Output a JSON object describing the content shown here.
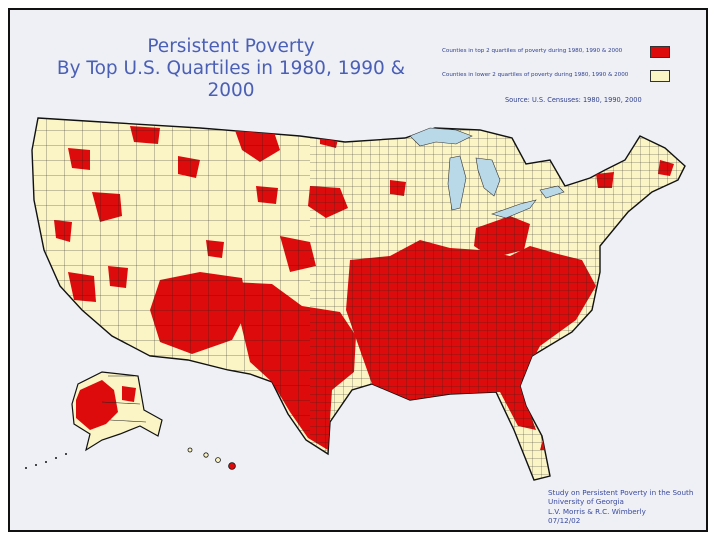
{
  "title": {
    "line1": "Persistent Poverty",
    "line2": "By Top U.S. Quartiles in 1980, 1990 & 2000"
  },
  "legend": {
    "items": [
      {
        "label": "Counties in top 2 quartiles of poverty during 1980, 1990 & 2000",
        "color": "#dd0b0b"
      },
      {
        "label": "Counties in lower 2 quartiles of poverty during 1980, 1990 & 2000",
        "color": "#fbf4c4"
      }
    ]
  },
  "source": "Source: U.S. Censuses: 1980, 1990, 2000",
  "credit": {
    "line1": "Study on Persistent Poverty in the South",
    "line2": "University of Georgia",
    "line3": "L.V. Morris & R.C. Wimberly",
    "line4": "07/12/02"
  },
  "colors": {
    "poverty": "#dd0b0b",
    "non_poverty": "#fbf4c4",
    "water": "#b9d9e9",
    "border": "#111111",
    "background": "#eef0f5"
  }
}
